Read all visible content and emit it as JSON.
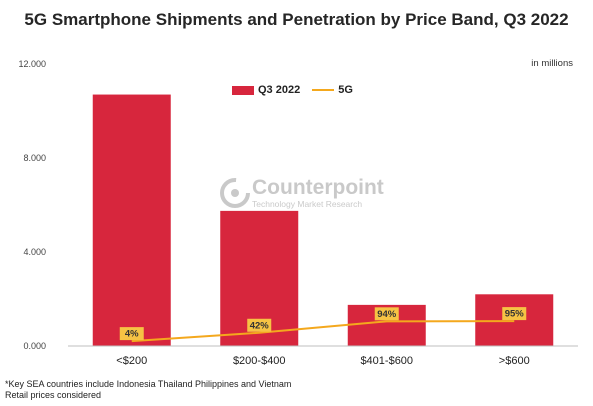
{
  "chart_data": {
    "type": "bar",
    "title": "5G Smartphone Shipments and Penetration by Price Band, Q3 2022",
    "units": "in millions",
    "categories": [
      "<$200",
      "$200-$400",
      "$401-$600",
      ">$600"
    ],
    "ylim": [
      0,
      12000
    ],
    "yticks": [
      0,
      4000,
      8000,
      12000
    ],
    "ytick_labels": [
      "0.000",
      "4.000",
      "8.000",
      "12.000"
    ],
    "grid": false,
    "legend_position": "top-center",
    "series": [
      {
        "name": "Q3 2022",
        "type": "bar",
        "color": "#d7263d",
        "values": [
          10700,
          5750,
          1750,
          2200
        ]
      },
      {
        "name": "5G",
        "type": "line",
        "color": "#f4a81d",
        "values": [
          4,
          42,
          94,
          95
        ],
        "labels": [
          "4%",
          "42%",
          "94%",
          "95%"
        ]
      }
    ]
  },
  "watermark": {
    "name": "Counterpoint",
    "tagline": "Technology Market Research"
  },
  "footnote": {
    "line1": "*Key SEA countries include Indonesia Thailand Philippines and Vietnam",
    "line2": "Retail prices considered"
  },
  "colors": {
    "bar": "#d7263d",
    "line": "#f4a81d",
    "label_box": "#f6c344",
    "axis": "#bfbfbf"
  }
}
